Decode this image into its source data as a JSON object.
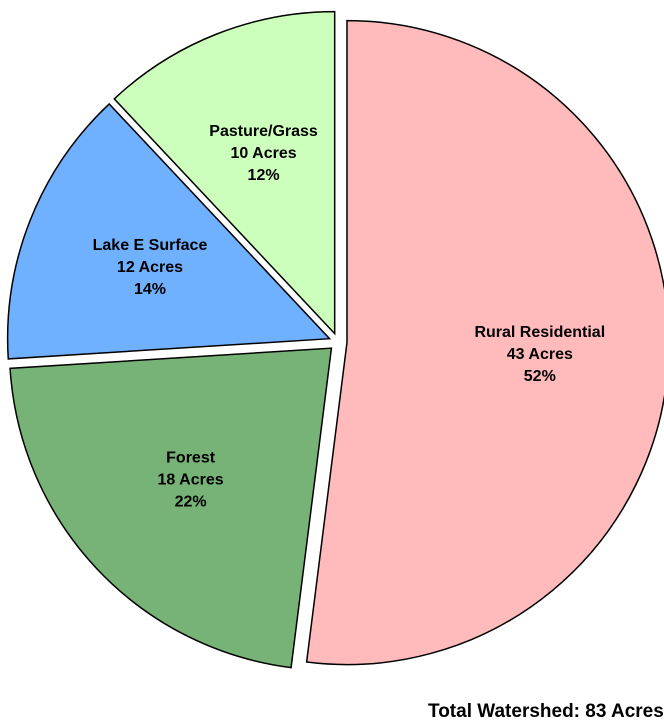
{
  "chart_data": {
    "type": "pie",
    "categories": [
      "Rural Residential",
      "Forest",
      "Lake E Surface",
      "Pasture/Grass"
    ],
    "values": [
      52,
      22,
      14,
      12
    ],
    "value_labels": [
      "52%",
      "22%",
      "14%",
      "12%"
    ],
    "acre_labels": [
      "43 Acres",
      "18 Acres",
      "12 Acres",
      "10 Acres"
    ],
    "colors": [
      "#ffbbbb",
      "#77b377",
      "#6fb0ff",
      "#ccffbb"
    ],
    "footer": "Total Watershed: 83 Acres"
  }
}
